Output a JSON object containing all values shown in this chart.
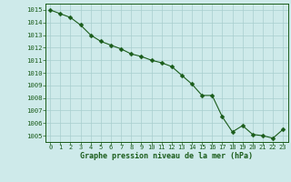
{
  "x": [
    0,
    1,
    2,
    3,
    4,
    5,
    6,
    7,
    8,
    9,
    10,
    11,
    12,
    13,
    14,
    15,
    16,
    17,
    18,
    19,
    20,
    21,
    22,
    23
  ],
  "y": [
    1015.0,
    1014.7,
    1014.4,
    1013.8,
    1013.0,
    1012.5,
    1012.2,
    1011.9,
    1011.5,
    1011.3,
    1011.0,
    1010.8,
    1010.5,
    1009.8,
    1009.1,
    1008.2,
    1008.2,
    1006.5,
    1005.3,
    1005.8,
    1005.1,
    1005.0,
    1004.8,
    1005.5
  ],
  "line_color": "#1a5c1a",
  "marker": "D",
  "marker_size": 2.5,
  "bg_color": "#ceeaea",
  "grid_color": "#a8cece",
  "xlabel": "Graphe pression niveau de la mer (hPa)",
  "xlabel_color": "#1a5c1a",
  "tick_color": "#1a5c1a",
  "ylim": [
    1004.5,
    1015.5
  ],
  "yticks": [
    1005,
    1006,
    1007,
    1008,
    1009,
    1010,
    1011,
    1012,
    1013,
    1014,
    1015
  ],
  "xticks": [
    0,
    1,
    2,
    3,
    4,
    5,
    6,
    7,
    8,
    9,
    10,
    11,
    12,
    13,
    14,
    15,
    16,
    17,
    18,
    19,
    20,
    21,
    22,
    23
  ],
  "xlim": [
    -0.5,
    23.5
  ]
}
